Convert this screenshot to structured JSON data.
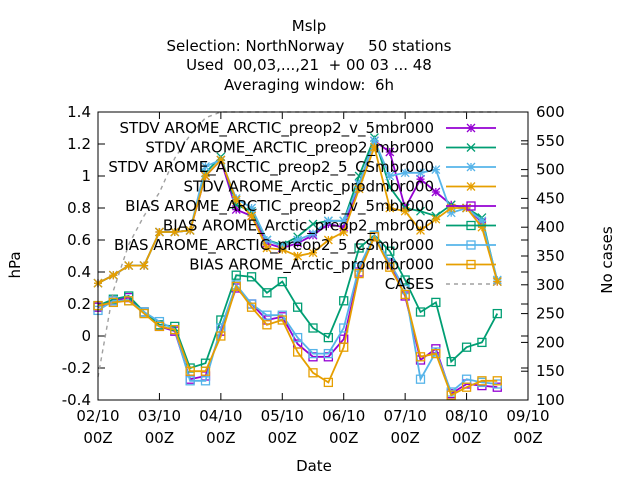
{
  "chart_data": {
    "type": "line",
    "title_lines": [
      "Mslp",
      "Selection: NorthNorway     50 stations",
      "Used  00,03,...,21  + 00 03 ... 48",
      "Averaging window:  6h"
    ],
    "xlabel": "Date",
    "ylabel": "hPa",
    "y2label": "No cases",
    "ylim": [
      -0.4,
      1.4
    ],
    "y2lim": [
      100,
      600
    ],
    "xlim": [
      0,
      7
    ],
    "yticks": [
      "-0.4",
      "-0.2",
      "0",
      "0.2",
      "0.4",
      "0.6",
      "0.8",
      "1",
      "1.2",
      "1.4"
    ],
    "y2ticks": [
      "100",
      "150",
      "200",
      "250",
      "300",
      "350",
      "400",
      "450",
      "500",
      "550",
      "600"
    ],
    "xticks": [
      {
        "x": 0,
        "l1": "02/10",
        "l2": "00Z"
      },
      {
        "x": 1,
        "l1": "03/10",
        "l2": "00Z"
      },
      {
        "x": 2,
        "l1": "04/10",
        "l2": "00Z"
      },
      {
        "x": 3,
        "l1": "05/10",
        "l2": "00Z"
      },
      {
        "x": 4,
        "l1": "06/10",
        "l2": "00Z"
      },
      {
        "x": 5,
        "l1": "07/10",
        "l2": "00Z"
      },
      {
        "x": 6,
        "l1": "08/10",
        "l2": "00Z"
      },
      {
        "x": 7,
        "l1": "09/10",
        "l2": "00Z"
      }
    ],
    "x": [
      0.0,
      0.25,
      0.5,
      0.75,
      1.0,
      1.25,
      1.5,
      1.75,
      2.0,
      2.25,
      2.5,
      2.75,
      3.0,
      3.25,
      3.5,
      3.75,
      4.0,
      4.25,
      4.5,
      4.75,
      5.0,
      5.25,
      5.5,
      5.75,
      6.0,
      6.25,
      6.5
    ],
    "legend_position": "top-right",
    "series": [
      {
        "name": "STDV AROME_ARCTIC_preop2_v_5mbr000",
        "axis": "y",
        "color": "#9400d3",
        "marker": "star",
        "dash": "",
        "values": [
          0.33,
          0.38,
          0.44,
          0.44,
          0.65,
          0.65,
          0.66,
          1.0,
          1.1,
          0.79,
          0.75,
          0.58,
          0.55,
          0.58,
          0.63,
          0.7,
          0.68,
          0.95,
          1.22,
          1.15,
          0.8,
          0.98,
          0.9,
          0.82,
          0.8,
          0.71,
          0.34
        ]
      },
      {
        "name": "STDV AROME_ARCTIC_preop2_mbr000",
        "axis": "y",
        "color": "#009e73",
        "marker": "cross",
        "dash": "",
        "values": [
          0.33,
          0.38,
          0.44,
          0.44,
          0.65,
          0.65,
          0.66,
          1.02,
          1.12,
          0.82,
          0.78,
          0.6,
          0.57,
          0.62,
          0.7,
          0.72,
          0.72,
          1.0,
          1.24,
          0.93,
          0.8,
          0.78,
          0.75,
          0.82,
          0.8,
          0.74,
          0.34
        ]
      },
      {
        "name": "STDV AROME_ARCTIC_preop2_5_CSmbr000",
        "axis": "y",
        "color": "#56b4e9",
        "marker": "asterisk",
        "dash": "",
        "values": [
          0.33,
          0.38,
          0.44,
          0.44,
          0.65,
          0.65,
          0.66,
          1.06,
          1.1,
          0.86,
          0.8,
          0.6,
          0.56,
          0.6,
          0.64,
          0.72,
          0.72,
          0.95,
          1.22,
          1.0,
          1.02,
          1.02,
          1.04,
          0.77,
          0.8,
          0.72,
          0.35
        ]
      },
      {
        "name": "STDV AROME_Arctic_prodmbr000",
        "axis": "y",
        "color": "#e69f00",
        "marker": "asterisk",
        "dash": "",
        "values": [
          0.33,
          0.38,
          0.44,
          0.44,
          0.65,
          0.65,
          0.66,
          1.0,
          1.1,
          0.85,
          0.75,
          0.55,
          0.54,
          0.5,
          0.52,
          0.6,
          0.65,
          0.92,
          1.18,
          0.8,
          0.78,
          0.66,
          0.73,
          0.8,
          0.8,
          0.68,
          0.34
        ]
      },
      {
        "name": "BIAS AROME_ARCTIC_preop2_v_5mbr000",
        "axis": "y",
        "color": "#9400d3",
        "marker": "square",
        "dash": "",
        "values": [
          0.18,
          0.22,
          0.24,
          0.15,
          0.06,
          0.03,
          -0.27,
          -0.25,
          0.03,
          0.3,
          0.2,
          0.1,
          0.12,
          -0.05,
          -0.13,
          -0.13,
          -0.02,
          0.4,
          0.62,
          0.45,
          0.25,
          -0.15,
          -0.08,
          -0.36,
          -0.3,
          -0.31,
          -0.32
        ]
      },
      {
        "name": "BIAS AROME_Arctic_preop2_mbr000",
        "axis": "y",
        "color": "#009e73",
        "marker": "square",
        "dash": "",
        "values": [
          0.19,
          0.23,
          0.25,
          0.15,
          0.07,
          0.06,
          -0.2,
          -0.17,
          0.1,
          0.38,
          0.37,
          0.27,
          0.34,
          0.18,
          0.05,
          -0.01,
          0.22,
          0.55,
          0.63,
          0.53,
          0.35,
          0.15,
          0.21,
          -0.16,
          -0.07,
          -0.04,
          0.14
        ]
      },
      {
        "name": "BIAS AROME_ARCTIC_preop2_5_CSmbr000",
        "axis": "y",
        "color": "#56b4e9",
        "marker": "square",
        "dash": "",
        "values": [
          0.16,
          0.22,
          0.22,
          0.15,
          0.09,
          0.04,
          -0.28,
          -0.28,
          0.05,
          0.32,
          0.2,
          0.13,
          0.13,
          -0.01,
          -0.11,
          -0.11,
          0.05,
          0.43,
          0.63,
          0.46,
          0.29,
          -0.27,
          -0.1,
          -0.35,
          -0.27,
          -0.29,
          -0.3
        ]
      },
      {
        "name": "BIAS AROME_Arctic_prodmbr000",
        "axis": "y",
        "color": "#e69f00",
        "marker": "square",
        "dash": "",
        "values": [
          0.19,
          0.21,
          0.22,
          0.14,
          0.06,
          0.04,
          -0.22,
          -0.22,
          0.0,
          0.31,
          0.18,
          0.07,
          0.1,
          -0.1,
          -0.23,
          -0.29,
          -0.07,
          0.39,
          0.62,
          0.43,
          0.26,
          -0.13,
          -0.11,
          -0.37,
          -0.32,
          -0.28,
          -0.28
        ]
      },
      {
        "name": "CASES",
        "axis": "y2",
        "color": "#a0a0a0",
        "marker": "none",
        "dash": "4,4",
        "values": [
          140,
          290,
          370,
          420,
          460,
          520,
          560,
          590,
          600,
          600,
          600,
          600,
          600,
          600,
          600,
          600,
          600,
          600,
          600,
          600,
          600,
          600,
          600,
          600,
          600,
          600,
          600
        ]
      }
    ]
  }
}
